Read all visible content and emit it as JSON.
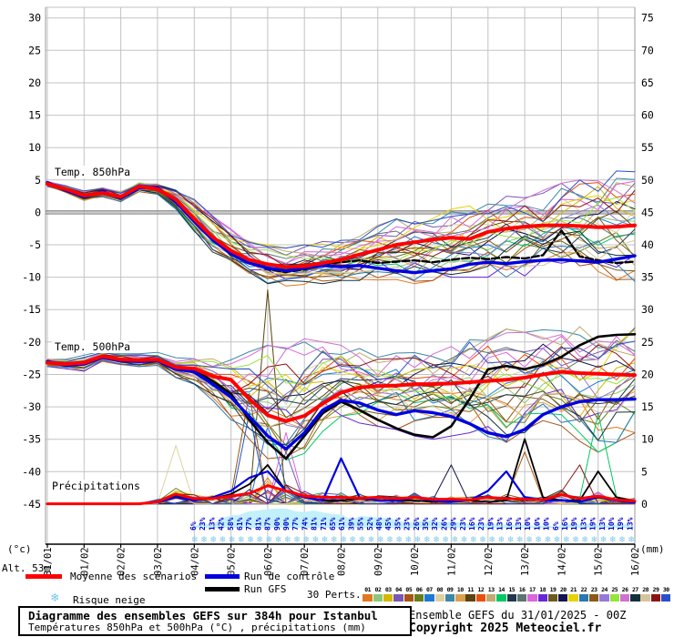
{
  "title_box": {
    "title": "Diagramme des ensembles GEFS sur 384h pour Istanbul",
    "subtitle": "Températures 850hPa et 500hPa (°C) , précipitations (mm)"
  },
  "footer": {
    "run_info": "Ensemble GEFS du 31/01/2025 - 00Z",
    "copyright": "Copyright 2025 Meteociel.fr"
  },
  "legend": {
    "mean_label": "Moyenne des scénarios",
    "control_label": "Run de contrôle",
    "gfs_label": "Run GFS",
    "perts_label": "30 Perts.",
    "snow_label": "Risque neige",
    "snowflake_icon": "❄"
  },
  "axes": {
    "left_unit": "(°c)",
    "right_unit": "(mm)",
    "altitude": "Alt. 53m",
    "left_ticks": [
      30,
      25,
      20,
      15,
      10,
      5,
      0,
      -5,
      -10,
      -15,
      -20,
      -25,
      -30,
      -35,
      -40,
      -45
    ],
    "right_ticks": [
      75,
      70,
      65,
      60,
      55,
      50,
      45,
      40,
      35,
      30,
      25,
      20,
      15,
      10,
      5,
      0
    ]
  },
  "chart_data": {
    "type": "line",
    "title": "Diagramme des ensembles GEFS sur 384h pour Istanbul",
    "x_dates": [
      "31/01",
      "01/02",
      "02/02",
      "03/02",
      "04/02",
      "05/02",
      "06/02",
      "07/02",
      "08/02",
      "09/02",
      "10/02",
      "11/02",
      "12/02",
      "13/02",
      "14/02",
      "15/02",
      "16/02"
    ],
    "time_step_hours": 12,
    "ylim_temp": [
      -45,
      30
    ],
    "ylim_precip": [
      0,
      75
    ],
    "grid": true,
    "series_850": {
      "label": "Temp. 850hPa",
      "mean": [
        4.4,
        3.6,
        2.6,
        3.0,
        2.4,
        4.0,
        3.6,
        2.0,
        -1.0,
        -3.8,
        -5.9,
        -7.3,
        -8.0,
        -8.4,
        -8.3,
        -7.8,
        -7.3,
        -6.5,
        -5.8,
        -5.0,
        -4.6,
        -4.2,
        -3.9,
        -4.1,
        -3.0,
        -2.5,
        -2.2,
        -2.0,
        -2.0,
        -2.1,
        -2.3,
        -2.2,
        -2.0
      ],
      "control": [
        4.6,
        3.4,
        2.4,
        3.2,
        2.2,
        3.8,
        3.8,
        1.6,
        -1.4,
        -4.2,
        -6.4,
        -7.8,
        -8.6,
        -9.0,
        -8.6,
        -8.2,
        -8.4,
        -8.2,
        -8.6,
        -9.0,
        -9.3,
        -9.0,
        -8.7,
        -8.0,
        -7.7,
        -7.9,
        -7.6,
        -7.4,
        -7.3,
        -7.5,
        -7.7,
        -7.2,
        -6.7
      ],
      "gfs": [
        4.5,
        3.5,
        2.5,
        3.1,
        2.3,
        3.9,
        3.7,
        1.8,
        -1.2,
        -4.0,
        -6.2,
        -7.6,
        -8.8,
        -9.2,
        -8.8,
        -8.0,
        -7.7,
        -7.4,
        -7.8,
        -7.6,
        -7.4,
        -7.7,
        -7.3,
        -7.0,
        -7.2,
        -6.9,
        -7.1,
        -6.6,
        -2.8,
        -6.8,
        -7.4,
        -7.8,
        -7.6
      ],
      "env_min": [
        4.0,
        3.0,
        1.8,
        2.4,
        1.6,
        3.2,
        2.8,
        0.5,
        -3.0,
        -6.5,
        -8.5,
        -10.0,
        -11.0,
        -11.5,
        -11.5,
        -11.0,
        -10.5,
        -10.5,
        -10.5,
        -10.8,
        -11.0,
        -10.5,
        -10.0,
        -10.0,
        -10.0,
        -10.0,
        -9.8,
        -9.5,
        -9.0,
        -9.5,
        -10.0,
        -10.5,
        -11.0
      ],
      "env_max": [
        4.8,
        4.2,
        3.4,
        3.8,
        3.2,
        4.6,
        4.4,
        3.5,
        2.0,
        -0.5,
        -2.5,
        -4.0,
        -5.0,
        -5.5,
        -5.0,
        -4.5,
        -4.0,
        -3.0,
        -2.0,
        -1.0,
        -0.5,
        0.0,
        0.5,
        1.0,
        1.5,
        2.5,
        3.0,
        3.5,
        4.5,
        5.0,
        6.0,
        6.5,
        7.5
      ]
    },
    "series_500": {
      "label": "Temp. 500hPa",
      "mean": [
        -23.2,
        -23.4,
        -23.2,
        -22.2,
        -22.7,
        -22.8,
        -22.7,
        -23.9,
        -24.1,
        -25.3,
        -25.8,
        -28.8,
        -31.3,
        -32.2,
        -31.4,
        -29.5,
        -27.8,
        -27.0,
        -26.8,
        -26.7,
        -26.5,
        -26.5,
        -26.4,
        -26.2,
        -26.0,
        -25.8,
        -25.5,
        -25.0,
        -24.6,
        -24.8,
        -24.9,
        -25.0,
        -25.1
      ],
      "control": [
        -23.0,
        -23.6,
        -23.4,
        -22.4,
        -22.9,
        -23.0,
        -22.9,
        -24.2,
        -24.6,
        -26.5,
        -28.5,
        -31.5,
        -34.5,
        -36.5,
        -34.0,
        -30.5,
        -29.0,
        -29.4,
        -30.5,
        -31.2,
        -30.6,
        -30.9,
        -31.5,
        -32.6,
        -34.0,
        -34.6,
        -33.5,
        -31.2,
        -30.0,
        -29.2,
        -28.9,
        -28.9,
        -28.8
      ],
      "gfs": [
        -23.1,
        -23.5,
        -23.3,
        -22.3,
        -22.8,
        -22.9,
        -22.8,
        -24.0,
        -24.4,
        -26.0,
        -28.0,
        -32.0,
        -35.5,
        -38.0,
        -34.5,
        -31.0,
        -29.2,
        -30.5,
        -32.0,
        -33.3,
        -34.3,
        -34.7,
        -33.0,
        -28.8,
        -24.2,
        -23.7,
        -24.2,
        -23.5,
        -22.3,
        -20.5,
        -19.2,
        -18.9,
        -18.8
      ],
      "env_min": [
        -23.8,
        -24.2,
        -24.5,
        -23.0,
        -23.5,
        -23.8,
        -23.6,
        -25.5,
        -26.5,
        -29.0,
        -32.0,
        -35.0,
        -38.0,
        -39.5,
        -38.0,
        -35.0,
        -33.0,
        -32.5,
        -33.0,
        -33.5,
        -34.5,
        -35.0,
        -34.5,
        -34.0,
        -35.0,
        -35.5,
        -34.5,
        -33.5,
        -34.0,
        -36.0,
        -37.0,
        -35.5,
        -34.0
      ],
      "env_max": [
        -22.6,
        -22.5,
        -22.0,
        -21.4,
        -21.8,
        -21.8,
        -21.6,
        -22.2,
        -22.0,
        -22.5,
        -22.0,
        -21.5,
        -20.5,
        -20.0,
        -19.5,
        -20.0,
        -20.5,
        -21.0,
        -21.5,
        -21.0,
        -20.5,
        -20.0,
        -19.5,
        -19.0,
        -18.5,
        -18.0,
        -18.5,
        -18.0,
        -17.5,
        -17.0,
        -17.5,
        -17.0,
        -16.5
      ]
    },
    "precip": {
      "label": "Précipitations",
      "mean": [
        0,
        0,
        0,
        0,
        0,
        0,
        0.3,
        1.5,
        0.8,
        0.8,
        1.2,
        1.6,
        2.8,
        2.0,
        1.2,
        1.0,
        1.0,
        0.9,
        1.0,
        0.8,
        1.0,
        0.7,
        0.7,
        0.6,
        1.0,
        0.8,
        0.7,
        0.6,
        1.4,
        0.8,
        1.2,
        0.6,
        0.4
      ],
      "control": [
        0,
        0,
        0,
        0,
        0,
        0,
        0.2,
        1.0,
        0.5,
        1.0,
        2.0,
        4.0,
        5.0,
        2.0,
        1.0,
        0.5,
        7.0,
        1.0,
        0.5,
        0.5,
        1.0,
        0.5,
        0.3,
        0.5,
        2.0,
        5.0,
        1.0,
        0.5,
        0.5,
        0.3,
        1.0,
        0.5,
        0.2
      ],
      "gfs": [
        0,
        0,
        0,
        0,
        0,
        0,
        0.3,
        1.2,
        0.6,
        0.8,
        1.5,
        3.0,
        6.0,
        2.0,
        1.0,
        0.5,
        0.5,
        0.8,
        0.5,
        0.5,
        0.5,
        0.3,
        0.5,
        0.5,
        0.3,
        0.5,
        10.0,
        1.0,
        0.5,
        0.5,
        5.0,
        1.0,
        0.3
      ],
      "member_spikes": [
        {
          "member": 10,
          "k": 12,
          "mm": 33
        },
        {
          "member": 7,
          "k": 7,
          "mm": 9
        },
        {
          "member": 29,
          "k": 11,
          "mm": 14
        },
        {
          "member": 6,
          "k": 12,
          "mm": 12
        },
        {
          "member": 21,
          "k": 16,
          "mm": 7
        },
        {
          "member": 13,
          "k": 30,
          "mm": 14
        },
        {
          "member": 28,
          "k": 29,
          "mm": 6
        },
        {
          "member": 19,
          "k": 22,
          "mm": 6
        },
        {
          "member": 4,
          "k": 26,
          "mm": 8
        },
        {
          "member": 22,
          "k": 11,
          "mm": 17
        },
        {
          "member": 16,
          "k": 13,
          "mm": 11
        },
        {
          "member": 3,
          "k": 13,
          "mm": 8
        }
      ]
    },
    "snow_risk_percent": [
      6,
      23,
      13,
      42,
      58,
      61,
      77,
      81,
      87,
      90,
      90,
      77,
      74,
      81,
      71,
      65,
      61,
      39,
      55,
      52,
      48,
      45,
      35,
      23,
      26,
      35,
      32,
      26,
      29,
      23,
      16,
      23,
      19,
      13,
      16,
      13,
      10,
      10,
      10,
      6,
      16,
      19,
      13,
      19,
      13,
      10,
      19,
      13
    ],
    "members": {
      "count": 30,
      "labels": [
        "01",
        "02",
        "03",
        "04",
        "05",
        "06",
        "07",
        "08",
        "09",
        "10",
        "11",
        "12",
        "13",
        "14",
        "15",
        "16",
        "17",
        "18",
        "19",
        "20",
        "21",
        "22",
        "23",
        "24",
        "25",
        "26",
        "27",
        "28",
        "29",
        "30"
      ],
      "colors": [
        "#e07820",
        "#8cc878",
        "#d4b800",
        "#7858b4",
        "#a85414",
        "#667f1e",
        "#1e78d8",
        "#e0d0a0",
        "#3c88a8",
        "#dca050",
        "#5a4410",
        "#e8500c",
        "#c0aa6e",
        "#00c864",
        "#20384e",
        "#5a7470",
        "#dc64dc",
        "#6428d8",
        "#6e5a20",
        "#141450",
        "#e8d200",
        "#2878b4",
        "#8c5a14",
        "#9678dc",
        "#96e43c",
        "#d070d0",
        "#10323c",
        "#d8c49c",
        "#8c1414",
        "#2850c8"
      ]
    },
    "colors": {
      "mean": "#ff0000",
      "control": "#0000e0",
      "gfs": "#000000",
      "risk_text": "#0000cc",
      "risk_area": "#c2f0fb",
      "snowflake": "#82cbe9",
      "grid": "#c3c3c3",
      "zero_line": "#8a8a8a"
    }
  }
}
